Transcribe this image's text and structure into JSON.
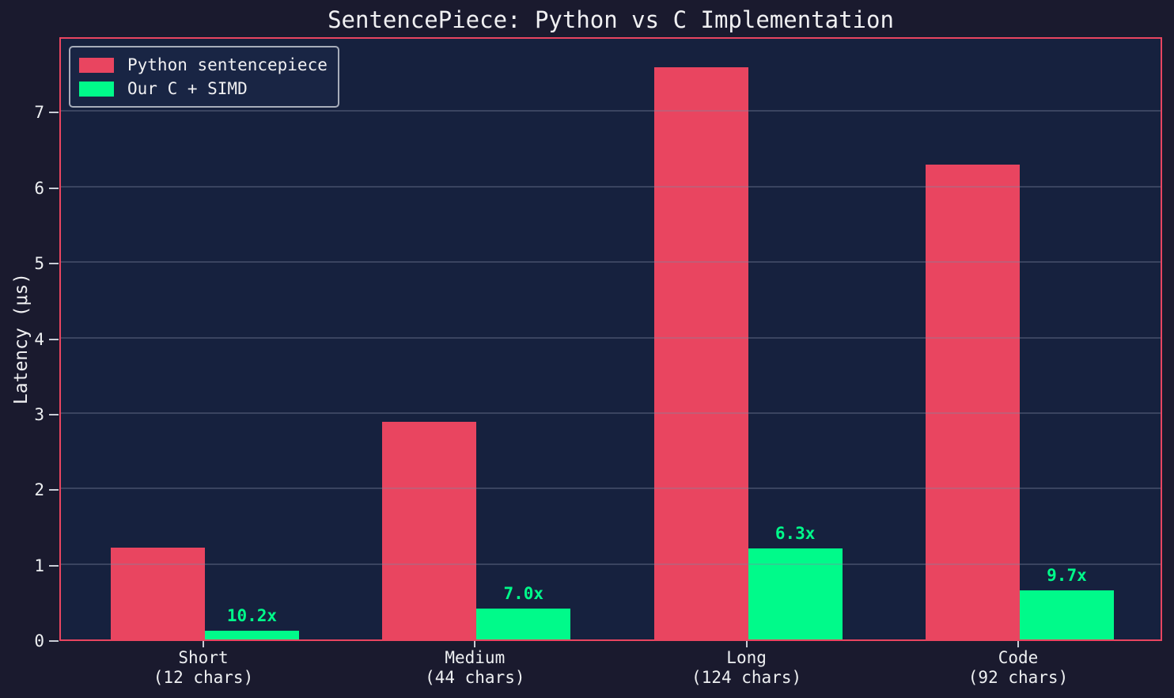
{
  "chart_data": {
    "type": "bar",
    "title": "SentencePiece: Python vs C Implementation",
    "xlabel": "",
    "ylabel": "Latency (μs)",
    "categories": [
      {
        "label": "Short",
        "sublabel": "(12 chars)"
      },
      {
        "label": "Medium",
        "sublabel": "(44 chars)"
      },
      {
        "label": "Long",
        "sublabel": "(124 chars)"
      },
      {
        "label": "Code",
        "sublabel": "(92 chars)"
      }
    ],
    "series": [
      {
        "name": "Python sentencepiece",
        "color": "#e94560",
        "values": [
          1.22,
          2.88,
          7.58,
          6.29
        ]
      },
      {
        "name": "Our C + SIMD",
        "color": "#00fa8a",
        "values": [
          0.12,
          0.41,
          1.21,
          0.65
        ]
      }
    ],
    "speedup_labels": [
      "10.2x",
      "7.0x",
      "6.3x",
      "9.7x"
    ],
    "ylim": [
      0,
      8
    ],
    "yticks": [
      0,
      1,
      2,
      3,
      4,
      5,
      6,
      7
    ],
    "grid": true,
    "legend_position": "upper-left",
    "colors": {
      "figure_bg": "#1a1a2e",
      "axes_bg": "#16213e",
      "spine": "#e94560",
      "grid": "rgba(125,135,160,0.35)",
      "text": "#f0f0f2",
      "speedup_text": "#00fa8a"
    }
  }
}
